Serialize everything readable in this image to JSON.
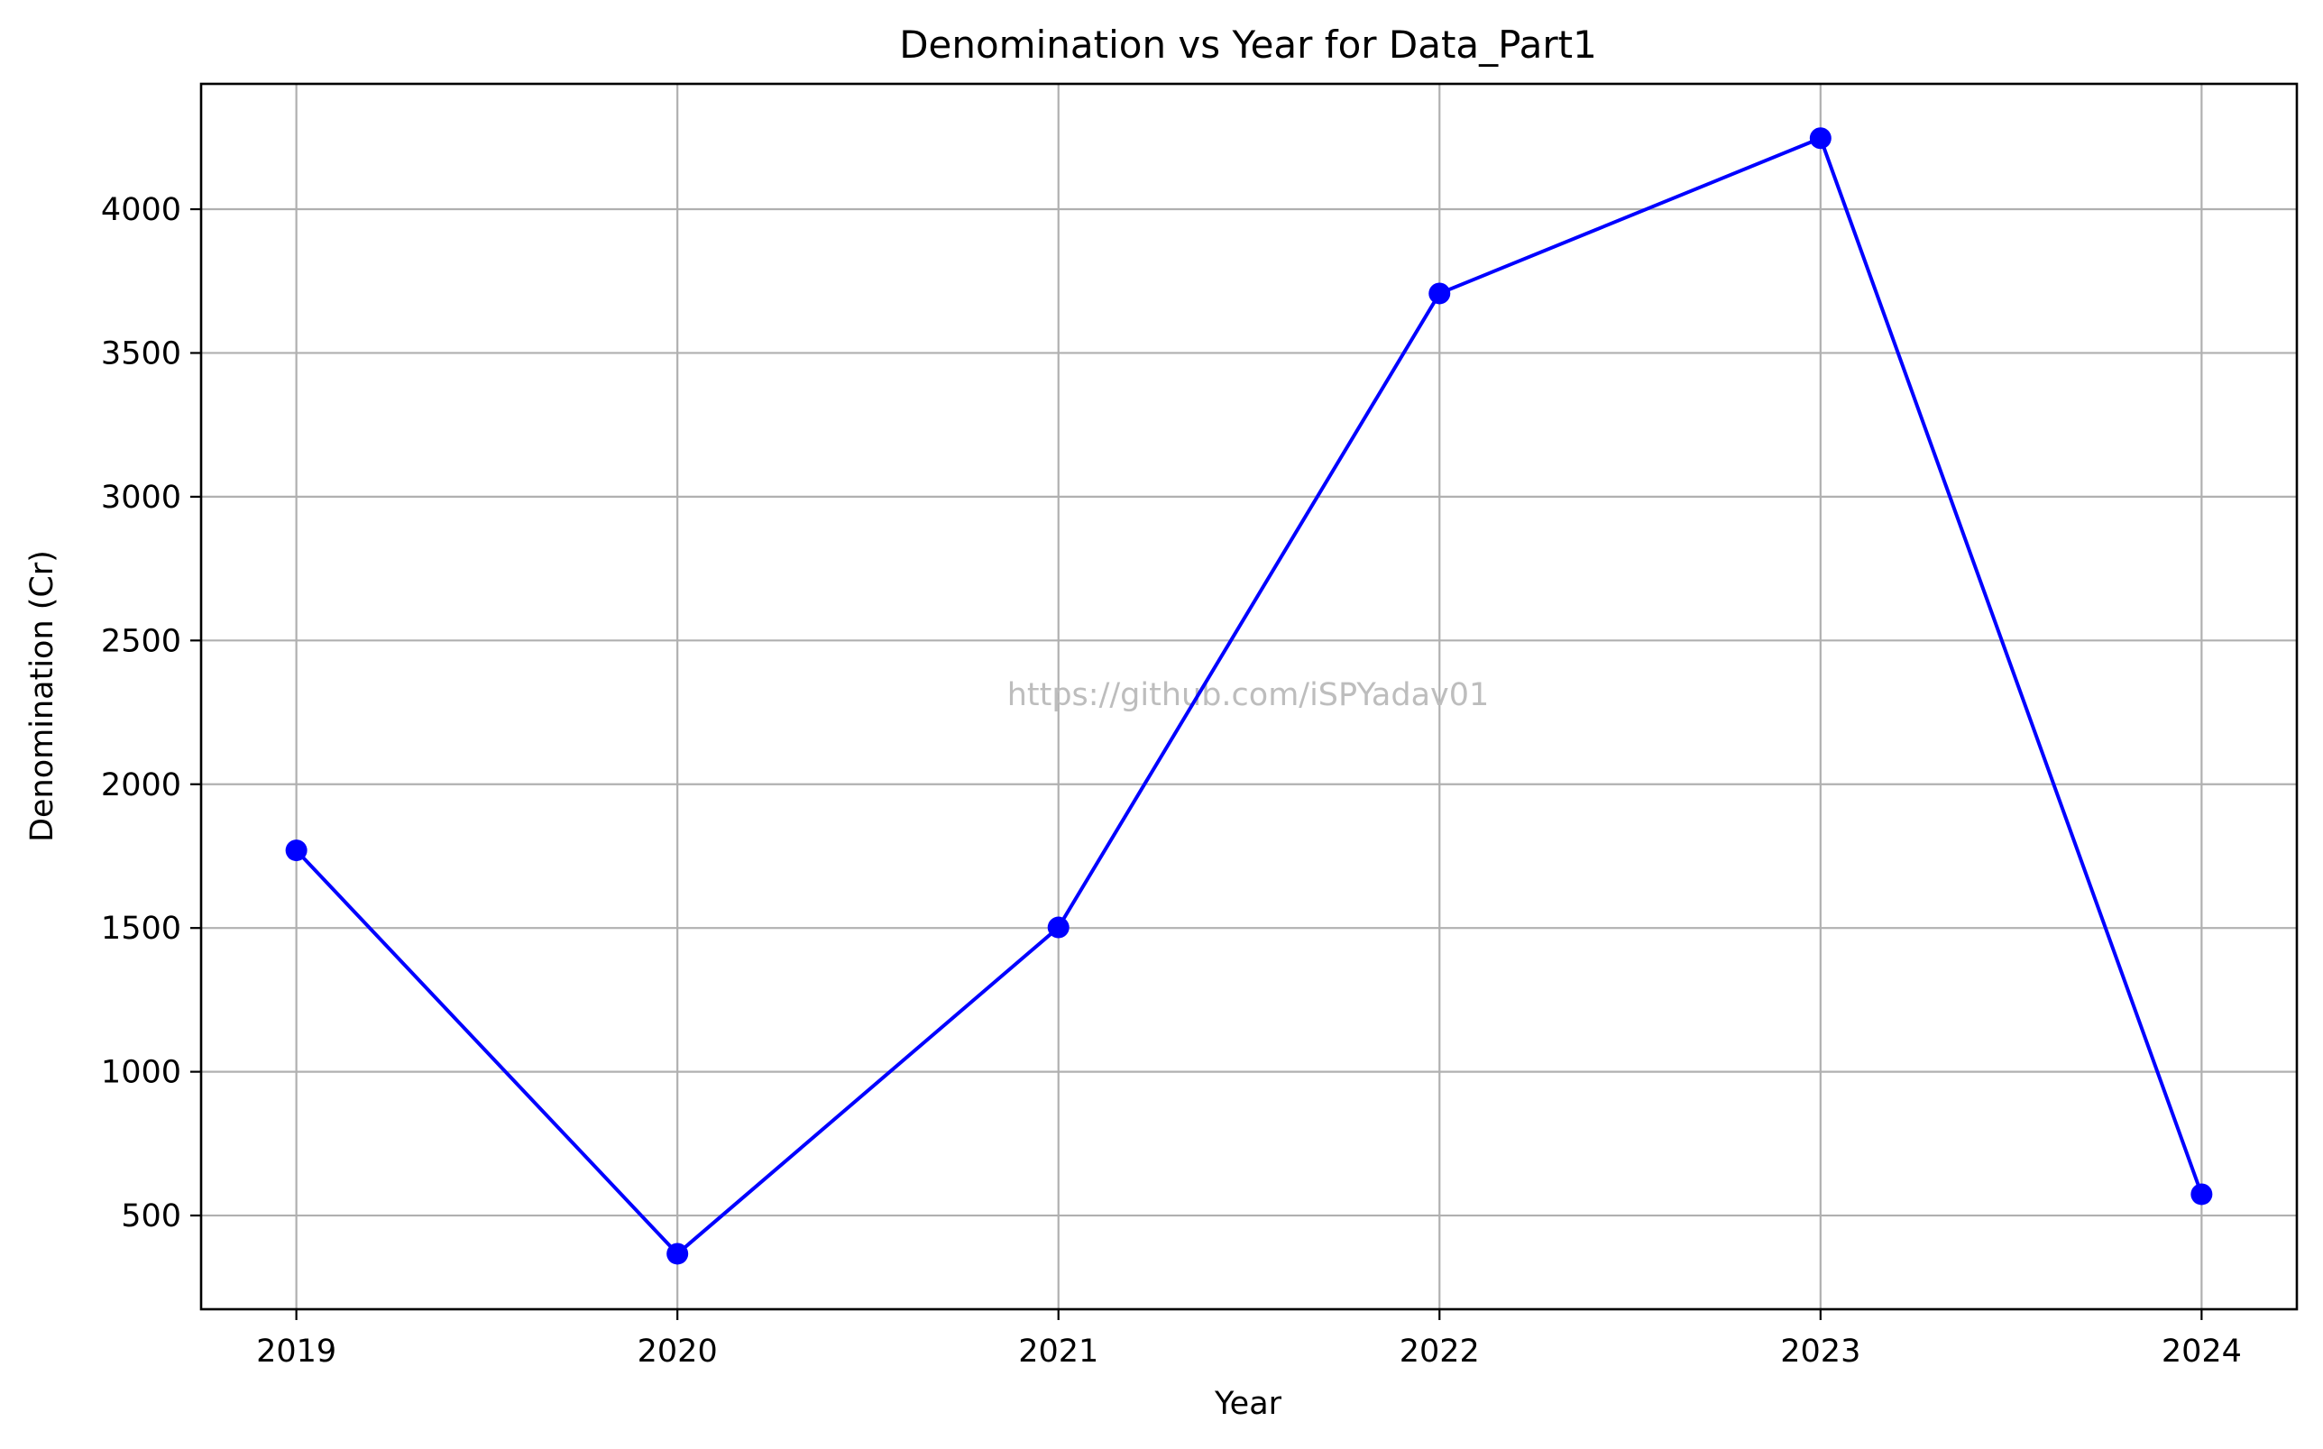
{
  "chart_data": {
    "type": "line",
    "title": "Denomination vs Year for Data_Part1",
    "xlabel": "Year",
    "ylabel": "Denomination (Cr)",
    "x": [
      2019,
      2020,
      2021,
      2022,
      2023,
      2024
    ],
    "x_tick_labels": [
      "2019",
      "2020",
      "2021",
      "2022",
      "2023",
      "2024"
    ],
    "y_ticks": [
      500,
      1000,
      1500,
      2000,
      2500,
      3000,
      3500,
      4000
    ],
    "y_tick_labels": [
      "500",
      "1000",
      "1500",
      "2000",
      "2500",
      "3000",
      "3500",
      "4000"
    ],
    "xlim": [
      2018.75,
      2024.25
    ],
    "ylim": [
      174,
      4436
    ],
    "grid": true,
    "series": [
      {
        "values": [
          1770,
          367,
          1502,
          3707,
          4247,
          574
        ],
        "color": "#0000ff",
        "marker": "circle"
      }
    ]
  },
  "watermark": "https://github.com/iSPYadav01"
}
